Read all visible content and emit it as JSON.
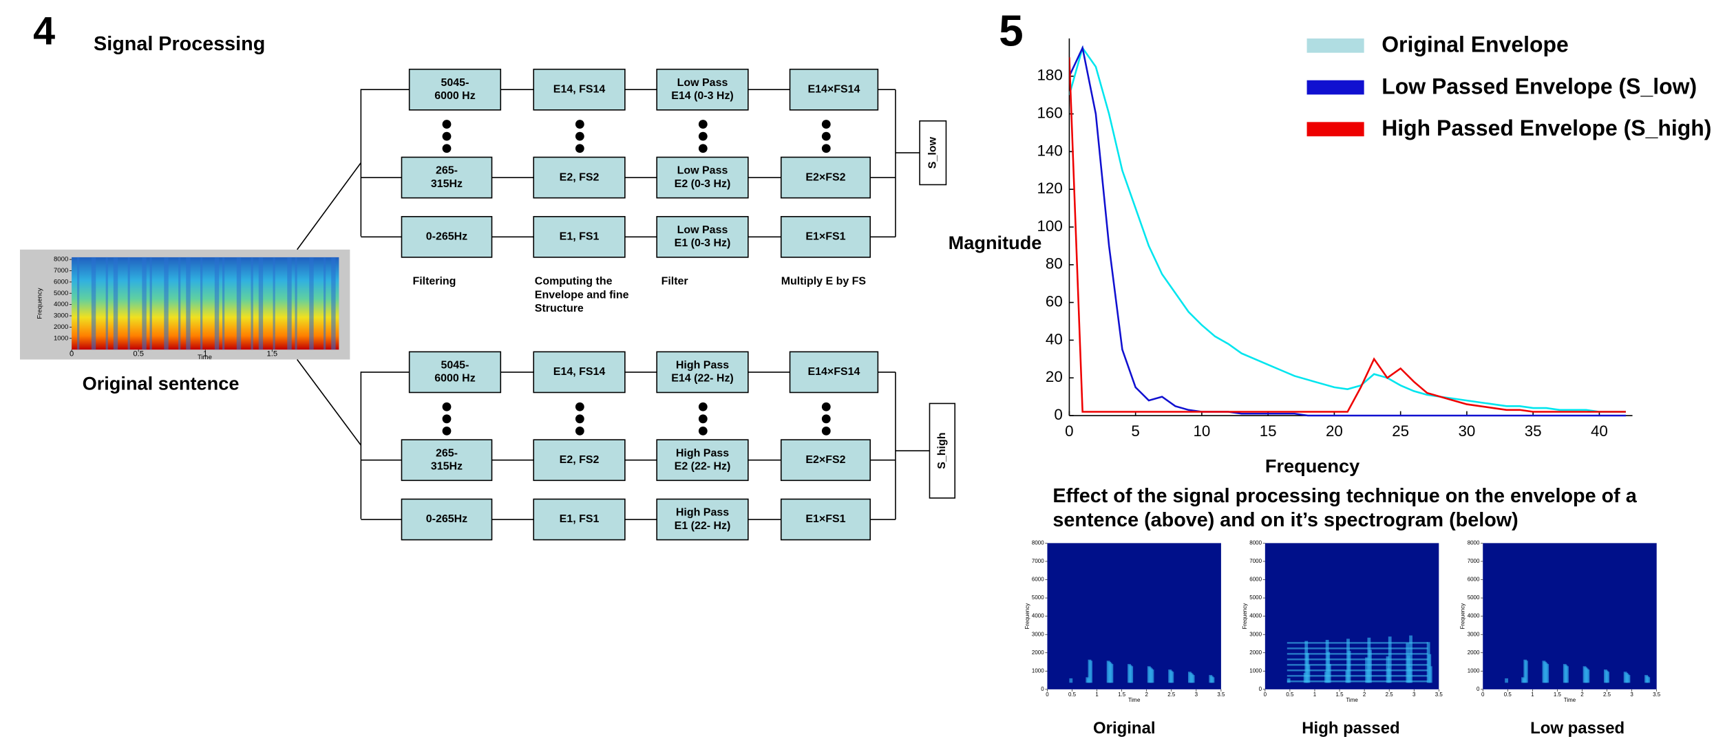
{
  "panel4": {
    "number": "4",
    "title": "Signal Processing",
    "spectrogram": {
      "caption": "Original sentence",
      "xlabel": "Time",
      "ylabel": "Frequency",
      "xticks": [
        0,
        0.5,
        1,
        1.5
      ],
      "yticks": [
        1000,
        2000,
        3000,
        4000,
        5000,
        6000,
        7000,
        8000
      ]
    },
    "low_path": {
      "output": "S_low",
      "rows": [
        [
          [
            "5045-",
            "6000 Hz"
          ],
          [
            "E14, FS14"
          ],
          [
            "Low Pass",
            "E14 (0-3 Hz)"
          ],
          [
            "E14×FS14"
          ]
        ],
        [
          [
            "265-",
            "315Hz"
          ],
          [
            "E2, FS2"
          ],
          [
            "Low Pass",
            "E2 (0-3 Hz)"
          ],
          [
            "E2×FS2"
          ]
        ],
        [
          [
            "0-265Hz"
          ],
          [
            "E1, FS1"
          ],
          [
            "Low Pass",
            "E1 (0-3 Hz)"
          ],
          [
            "E1×FS1"
          ]
        ]
      ]
    },
    "step_labels": [
      [
        "Filtering"
      ],
      [
        "Computing the",
        "Envelope and fine",
        "Structure"
      ],
      [
        "Filter"
      ],
      [
        "Multiply E by FS"
      ]
    ],
    "high_path": {
      "output": "S_high",
      "rows": [
        [
          [
            "5045-",
            "6000 Hz"
          ],
          [
            "E14, FS14"
          ],
          [
            "High Pass",
            "E14 (22- Hz)"
          ],
          [
            "E14×FS14"
          ]
        ],
        [
          [
            "265-",
            "315Hz"
          ],
          [
            "E2, FS2"
          ],
          [
            "High Pass",
            "E2 (22- Hz)"
          ],
          [
            "E2×FS2"
          ]
        ],
        [
          [
            "0-265Hz"
          ],
          [
            "E1, FS1"
          ],
          [
            "High Pass",
            "E1 (22- Hz)"
          ],
          [
            "E1×FS1"
          ]
        ]
      ]
    }
  },
  "panel5": {
    "number": "5",
    "chart": {
      "type": "line",
      "xlabel": "Frequency",
      "ylabel": "Magnitude",
      "xlim": [
        0,
        42.5
      ],
      "ylim": [
        0,
        200
      ],
      "xticks": [
        0,
        5,
        10,
        15,
        20,
        25,
        30,
        35,
        40
      ],
      "yticks": [
        0,
        20,
        40,
        60,
        80,
        100,
        120,
        140,
        160,
        180
      ],
      "x": [
        0,
        1,
        2,
        3,
        4,
        5,
        6,
        7,
        8,
        9,
        10,
        11,
        12,
        13,
        14,
        15,
        16,
        17,
        18,
        19,
        20,
        21,
        22,
        23,
        24,
        25,
        26,
        27,
        28,
        29,
        30,
        31,
        32,
        33,
        34,
        35,
        36,
        37,
        38,
        39,
        40,
        41,
        42
      ],
      "series": [
        {
          "name": "Original Envelope",
          "color": "#00e5ee",
          "values": [
            170,
            195,
            185,
            160,
            130,
            110,
            90,
            75,
            65,
            55,
            48,
            42,
            38,
            33,
            30,
            27,
            24,
            21,
            19,
            17,
            15,
            14,
            16,
            22,
            20,
            16,
            13,
            11,
            10,
            9,
            8,
            7,
            6,
            5,
            5,
            4,
            4,
            3,
            3,
            3,
            2,
            2,
            2
          ]
        },
        {
          "name": "Low Passed Envelope (S_low)",
          "color": "#1010d0",
          "values": [
            180,
            195,
            160,
            90,
            35,
            15,
            8,
            10,
            5,
            3,
            2,
            2,
            2,
            1,
            1,
            1,
            1,
            1,
            0,
            0,
            0,
            0,
            0,
            0,
            0,
            0,
            0,
            0,
            0,
            0,
            0,
            0,
            0,
            0,
            0,
            0,
            0,
            0,
            0,
            0,
            0,
            0,
            0
          ]
        },
        {
          "name": "High Passed Envelope (S_high)",
          "color": "#ee0000",
          "values": [
            190,
            2,
            2,
            2,
            2,
            2,
            2,
            2,
            2,
            2,
            2,
            2,
            2,
            2,
            2,
            2,
            2,
            2,
            2,
            2,
            2,
            2,
            15,
            30,
            20,
            25,
            18,
            12,
            10,
            8,
            6,
            5,
            4,
            3,
            3,
            2,
            2,
            2,
            2,
            2,
            2,
            2,
            2
          ]
        }
      ]
    },
    "caption": [
      "Effect of the signal processing technique on the envelope of a",
      "sentence (above) and on it’s spectrogram (below)"
    ],
    "spectrogram_axes": {
      "xlabel": "Time",
      "ylabel": "Frequency",
      "xticks": [
        0,
        0.5,
        1,
        1.5,
        2,
        2.5,
        3,
        3.5
      ],
      "yticks": [
        0,
        1000,
        2000,
        3000,
        4000,
        5000,
        6000,
        7000,
        8000
      ]
    },
    "spectrograms": [
      "Original",
      "High passed",
      "Low passed"
    ]
  }
}
